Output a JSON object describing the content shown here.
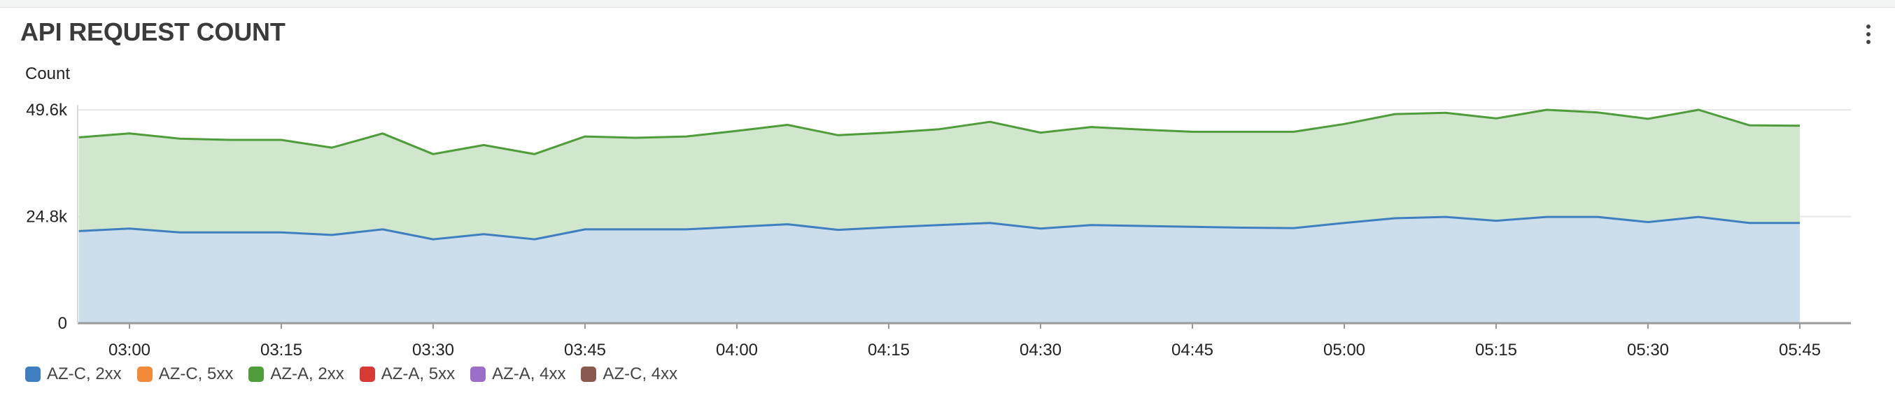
{
  "widget": {
    "title": "API REQUEST COUNT",
    "menu_icon": "vertical-ellipsis-icon"
  },
  "chart_data": {
    "type": "area",
    "stacked": true,
    "title": "API REQUEST COUNT",
    "ylabel": "Count",
    "xlabel": "",
    "ylim": [
      0,
      49600
    ],
    "y_ticks": [
      "0",
      "24.8k",
      "49.6k"
    ],
    "y_tick_values": [
      0,
      24800,
      49600
    ],
    "x_ticks": [
      "03:00",
      "03:15",
      "03:30",
      "03:45",
      "04:00",
      "04:15",
      "04:30",
      "04:45",
      "05:00",
      "05:15",
      "05:30",
      "05:45"
    ],
    "x_tick_minutes": [
      0,
      15,
      30,
      45,
      60,
      75,
      90,
      105,
      120,
      135,
      150,
      165
    ],
    "x_start_minutes": -5,
    "x_end_minutes": 170,
    "grid": true,
    "legend_position": "bottom-left",
    "x_minutes": [
      -5,
      0,
      5,
      10,
      15,
      20,
      25,
      30,
      35,
      40,
      45,
      50,
      55,
      60,
      65,
      70,
      75,
      80,
      85,
      90,
      95,
      100,
      105,
      110,
      115,
      120,
      125,
      130,
      135,
      140,
      145,
      150,
      155,
      160,
      165
    ],
    "series": [
      {
        "name": "AZ-C, 2xx",
        "color": "#3f7fbf",
        "fill": "#ccdeec",
        "values": [
          21400,
          22000,
          21100,
          21100,
          21100,
          20500,
          21800,
          19500,
          20700,
          19500,
          21800,
          21800,
          21800,
          22400,
          23000,
          21700,
          22300,
          22800,
          23300,
          22000,
          22800,
          22600,
          22400,
          22200,
          22100,
          23300,
          24400,
          24700,
          23800,
          24700,
          24700,
          23500,
          24700,
          23300,
          23300
        ]
      },
      {
        "name": "AZ-C, 5xx",
        "color": "#f28a3a",
        "fill": "#fbd9b8",
        "values": [
          0,
          0,
          0,
          0,
          0,
          0,
          0,
          0,
          0,
          0,
          0,
          0,
          0,
          0,
          0,
          0,
          0,
          0,
          0,
          0,
          0,
          0,
          0,
          0,
          0,
          0,
          0,
          0,
          0,
          0,
          0,
          0,
          0,
          0,
          0
        ]
      },
      {
        "name": "AZ-A, 2xx",
        "color": "#4f9d3a",
        "fill": "#d0e7cd",
        "values": [
          21800,
          22100,
          21800,
          21500,
          21500,
          20300,
          22300,
          19800,
          20700,
          19800,
          21600,
          21300,
          21600,
          22300,
          23100,
          22000,
          22000,
          22300,
          23500,
          22300,
          22800,
          22400,
          22100,
          22300,
          22400,
          23000,
          24200,
          24200,
          23800,
          24900,
          24300,
          24000,
          24900,
          22700,
          22600
        ]
      },
      {
        "name": "AZ-A, 5xx",
        "color": "#d63a32",
        "fill": "#f3c4c1",
        "values": [
          0,
          0,
          0,
          0,
          0,
          0,
          0,
          0,
          0,
          0,
          0,
          0,
          0,
          0,
          0,
          0,
          0,
          0,
          0,
          0,
          0,
          0,
          0,
          0,
          0,
          0,
          0,
          0,
          0,
          0,
          0,
          0,
          0,
          0,
          0
        ]
      },
      {
        "name": "AZ-A, 4xx",
        "color": "#9b6fc9",
        "fill": "#e2d5f1",
        "values": [
          0,
          0,
          0,
          0,
          0,
          0,
          0,
          0,
          0,
          0,
          0,
          0,
          0,
          0,
          0,
          0,
          0,
          0,
          0,
          0,
          0,
          0,
          0,
          0,
          0,
          0,
          0,
          0,
          0,
          0,
          0,
          0,
          0,
          0,
          0
        ]
      },
      {
        "name": "AZ-C, 4xx",
        "color": "#8a5a4e",
        "fill": "#dcccc8",
        "values": [
          0,
          0,
          0,
          0,
          0,
          0,
          0,
          0,
          0,
          0,
          0,
          0,
          0,
          0,
          0,
          0,
          0,
          0,
          0,
          0,
          0,
          0,
          0,
          0,
          0,
          0,
          0,
          0,
          0,
          0,
          0,
          0,
          0,
          0,
          0
        ]
      }
    ]
  }
}
